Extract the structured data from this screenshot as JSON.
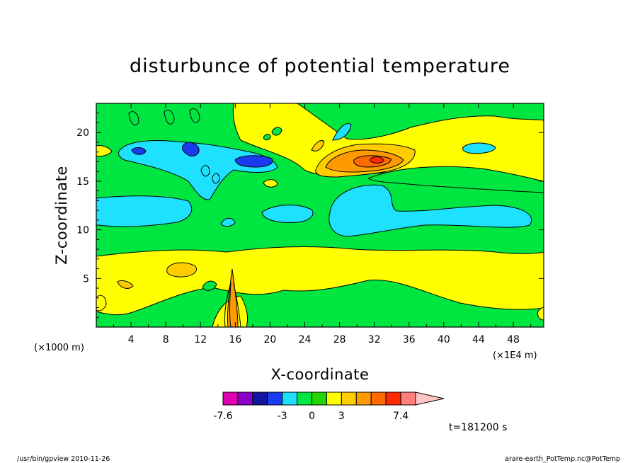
{
  "chart_data": {
    "type": "heatmap",
    "title": "disturbunce of potential temperature",
    "xlabel": "X-coordinate",
    "ylabel": "Z-coordinate",
    "x_unit_left": "(×1000 m)",
    "x_unit_right": "(×1E4 m)",
    "xlim": [
      0,
      51.5
    ],
    "ylim": [
      0,
      23
    ],
    "x_ticks": [
      4,
      8,
      12,
      16,
      20,
      24,
      28,
      32,
      36,
      40,
      44,
      48
    ],
    "y_ticks": [
      5,
      10,
      15,
      20
    ],
    "time_label": "t=181200 s",
    "colorbar": {
      "colors": [
        "#e000b0",
        "#8a00c8",
        "#1414a0",
        "#1a3cf0",
        "#1ee0ff",
        "#00e640",
        "#22d400",
        "#ffff00",
        "#ffcc00",
        "#ff9a00",
        "#ff6a00",
        "#ff2a00",
        "#ff7e7e",
        "#ffc4c4"
      ],
      "labels": [
        "-7.6",
        "-3",
        "0",
        "3",
        "7.4"
      ],
      "label_positions": [
        0,
        4,
        6,
        8,
        12
      ]
    },
    "regions": [
      {
        "value": 0.3,
        "color": "#ffff00",
        "band": [
          7.8,
          4.5
        ],
        "x": [
          0,
          51.5
        ]
      },
      {
        "value": -0.3,
        "color": "#00e640",
        "band": [
          12.5,
          8.3
        ],
        "x": [
          0,
          51.5
        ]
      },
      {
        "value": -1.5,
        "color": "#1ee0ff",
        "band": [
          13.2,
          10.2
        ],
        "x": [
          0,
          13
        ]
      },
      {
        "value": -1.5,
        "color": "#1ee0ff",
        "band": [
          13.5,
          10
        ],
        "x": [
          26,
          50
        ]
      },
      {
        "value": 0.3,
        "color": "#ffff00",
        "band": [
          22,
          16
        ],
        "x": [
          16,
          51.5
        ]
      },
      {
        "value": -1.5,
        "color": "#1ee0ff",
        "band": [
          19,
          16.5
        ],
        "x": [
          3,
          21
        ]
      },
      {
        "value": -3.5,
        "color": "#1a3cf0",
        "band": [
          18,
          17
        ],
        "x": [
          15.5,
          20
        ]
      },
      {
        "value": 2.5,
        "color": "#ff9a00",
        "band": [
          18.5,
          16.3
        ],
        "x": [
          26.5,
          36
        ]
      },
      {
        "value": 4.5,
        "color": "#ff6a00",
        "band": [
          17.8,
          16.8
        ],
        "x": [
          31,
          33
        ]
      },
      {
        "value": 1.5,
        "color": "#ffcc00",
        "band": [
          6.5,
          5.5
        ],
        "x": [
          8.5,
          11.5
        ]
      }
    ]
  },
  "footer": {
    "left": "/usr/bin/gpview  2010-11-26",
    "right": "arare-earth_PotTemp.nc@PotTemp"
  }
}
